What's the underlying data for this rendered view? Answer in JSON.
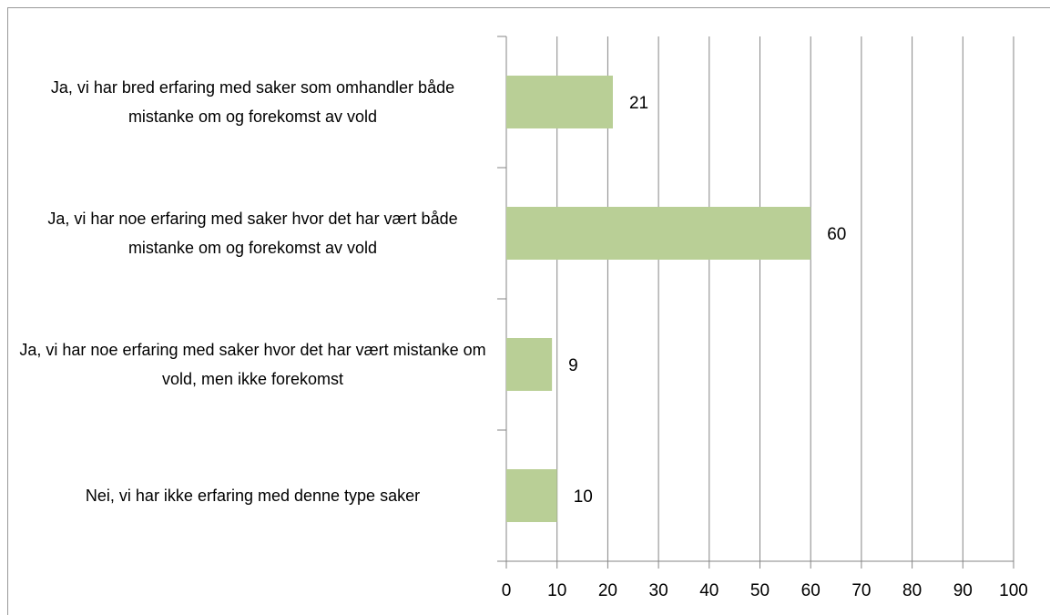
{
  "chart_data": {
    "type": "bar",
    "orientation": "horizontal",
    "categories": [
      "Ja, vi har bred erfaring med saker som omhandler både mistanke om og forekomst av vold",
      "Ja, vi har noe erfaring med saker hvor det har vært både mistanke om og forekomst av vold",
      "Ja, vi har noe erfaring med saker hvor det har vært mistanke om vold, men ikke forekomst",
      "Nei, vi har ikke erfaring med denne type saker"
    ],
    "values": [
      21,
      60,
      9,
      10
    ],
    "color": "#b9cf96",
    "xlim": [
      0,
      100
    ],
    "xticks": [
      0,
      10,
      20,
      30,
      40,
      50,
      60,
      70,
      80,
      90,
      100
    ],
    "grid": true
  }
}
